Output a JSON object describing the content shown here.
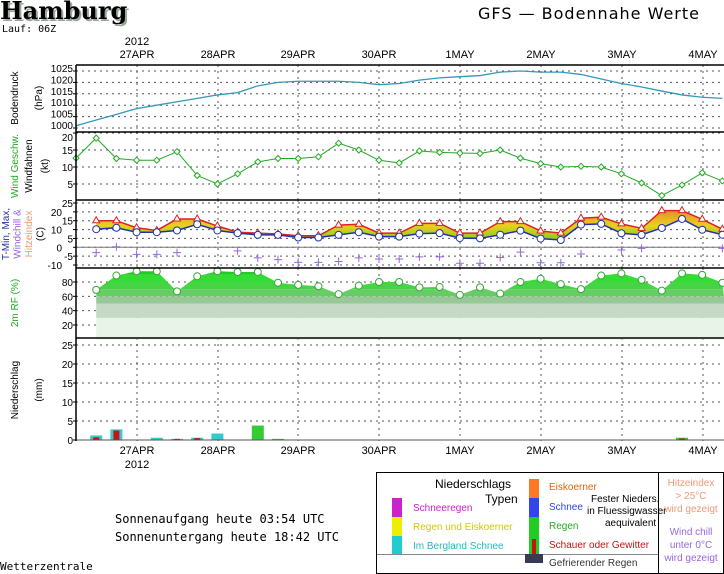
{
  "header": {
    "city": "Hamburg",
    "run": "Lauf: 06Z",
    "title": "GFS — Bodennahe Werte"
  },
  "footer": {
    "sunrise": "Sonnenaufgang heute 03:54 UTC",
    "sunset": "Sonnenuntergang heute 18:42 UTC",
    "brand": "Wetterzentrale"
  },
  "axis": {
    "year": "2012",
    "dates": [
      "27APR",
      "28APR",
      "29APR",
      "30APR",
      "1MAY",
      "2MAY",
      "3MAY",
      "4MAY"
    ]
  },
  "chart_data": [
    {
      "type": "line",
      "name": "pressure",
      "ylabel": "Bodendruck",
      "unit": "(hPa)",
      "ylim": [
        999,
        1027
      ],
      "yticks": [
        "1025",
        "1020",
        "1015",
        "1010",
        "1005",
        "1000"
      ],
      "color": "#3399bb",
      "time_step_hours": 6,
      "start": "26APR 06Z",
      "values": [
        1001,
        1003.5,
        1006,
        1008.5,
        1010,
        1011.5,
        1013,
        1014.5,
        1015.5,
        1018.5,
        1020,
        1020.5,
        1020.5,
        1020.5,
        1020,
        1019,
        1019.5,
        1021,
        1022,
        1022.5,
        1023,
        1024.5,
        1025,
        1024.5,
        1024.5,
        1023.5,
        1021.5,
        1019.5,
        1018,
        1016.2,
        1014.5,
        1013.5,
        1013
      ]
    },
    {
      "type": "line",
      "name": "wind",
      "ylabel": "Wind Geschw.",
      "ylabel2": "Windfahnen",
      "unit": "(kt)",
      "ylim": [
        0,
        20
      ],
      "yticks": [
        "20",
        "15",
        "10",
        "5"
      ],
      "color": "#22aa22",
      "values": [
        12.6,
        18.5,
        12.5,
        12,
        12,
        14.5,
        7.5,
        5,
        8,
        11.5,
        12.5,
        12.5,
        13,
        17,
        15,
        12,
        11.2,
        14.7,
        14.3,
        14.1,
        14,
        15,
        12.6,
        11,
        10,
        10.2,
        10,
        8,
        5.3,
        1.6,
        4.7,
        8.3,
        5.9
      ]
    },
    {
      "type": "area",
      "name": "temperature",
      "ylabel": "T-Min, Max,",
      "ylabel2": "Windchill &",
      "ylabel3": "Hitzeindex",
      "unit": "(C)",
      "ylim": [
        -12,
        25
      ],
      "yticks": [
        "25",
        "20",
        "15",
        "10",
        "5",
        "0",
        "-5",
        "-10"
      ],
      "colors": {
        "max": "#dd2222",
        "min": "#2233aa",
        "windchill": "#9966dd"
      },
      "max": [
        null,
        15,
        15,
        11,
        9.5,
        16,
        16,
        12,
        8.5,
        8,
        7.5,
        6.5,
        6.5,
        12.5,
        13,
        8,
        8,
        13.5,
        13.5,
        8,
        8,
        14.5,
        14.5,
        9.2,
        8,
        16.4,
        17,
        13.2,
        10.7,
        20.7,
        20.7,
        15.8,
        10.2
      ],
      "min": [
        null,
        10.2,
        11,
        8.5,
        8.5,
        9.5,
        13,
        9.5,
        8,
        7,
        7,
        5.5,
        5.5,
        7,
        8.5,
        6,
        6,
        7.7,
        8,
        5.2,
        5,
        7.1,
        9.4,
        4.9,
        4.1,
        12.8,
        13.2,
        7.9,
        7,
        10.9,
        16,
        9.9,
        7.1
      ],
      "windchill": [
        null,
        -3,
        0.3,
        -4,
        -4,
        -3,
        null,
        null,
        -2,
        -6,
        -7,
        -8.5,
        -8.5,
        -8,
        -6,
        -6.6,
        -6.6,
        -5.4,
        -5.4,
        -9,
        -9,
        -5.8,
        -2.7,
        -8.7,
        -8.7,
        -3.8,
        null,
        -1.5,
        -0.6,
        null,
        null,
        null,
        -0.6
      ]
    },
    {
      "type": "area",
      "name": "humidity",
      "ylabel": "2m RF (%)",
      "ylim": [
        0,
        100
      ],
      "yticks": [
        "80",
        "60",
        "40",
        "20"
      ],
      "color": "#22cc22",
      "values": [
        null,
        69,
        89,
        95,
        95,
        67,
        88,
        95,
        94,
        94,
        79,
        76,
        74,
        63,
        75,
        80,
        80,
        72.5,
        73,
        62,
        72.5,
        64,
        80,
        84.5,
        77,
        70,
        89,
        92,
        83,
        68,
        92,
        90,
        79
      ]
    },
    {
      "type": "bar",
      "name": "precipitation",
      "ylabel": "Niederschlag",
      "unit": "(mm)",
      "ylim": [
        0,
        27
      ],
      "yticks": [
        "25",
        "20",
        "15",
        "10",
        "5",
        "0"
      ],
      "bars": [
        {
          "step": 1,
          "type": "bergland",
          "total": 1.2,
          "convective": 0.7
        },
        {
          "step": 2,
          "type": "bergland",
          "total": 2.8,
          "convective": 2.5
        },
        {
          "step": 4,
          "type": "bergland",
          "total": 0.6,
          "convective": 0
        },
        {
          "step": 5,
          "type": "bergland",
          "total": 0.3,
          "convective": 0.3
        },
        {
          "step": 6,
          "type": "bergland",
          "total": 0.6,
          "convective": 0.5
        },
        {
          "step": 7,
          "type": "bergland",
          "total": 1.7,
          "convective": 0
        },
        {
          "step": 9,
          "type": "regen",
          "total": 3.8,
          "convective": 0
        },
        {
          "step": 10,
          "type": "regen",
          "total": 0.3,
          "convective": 0
        },
        {
          "step": 30,
          "type": "regen",
          "total": 0.6,
          "convective": 0.4
        }
      ]
    }
  ],
  "legend": {
    "title1": "Niederschlags",
    "title2": "Typen",
    "items": [
      {
        "label": "Schneeregen",
        "color": "#cc22cc"
      },
      {
        "label": "Regen und Eiskoerner",
        "color": "#eeee00"
      },
      {
        "label": "Im Bergland Schnee",
        "color": "#22cccc"
      },
      {
        "label": "Eiskoerner",
        "color": "#ff7722"
      },
      {
        "label": "Schnee",
        "color": "#3344ee"
      },
      {
        "label": "Regen",
        "color": "#22cc22"
      },
      {
        "label": "Schauer oder Gewitter",
        "color": "#cc1111"
      },
      {
        "label": "Gefrierender Regen",
        "color": "#3a3a55"
      }
    ],
    "solid1": "Fester Nieders.",
    "solid2": "in Fluessigwasser",
    "solid3": "aequivalent",
    "heat1": "Hitzeindex",
    "heat2": "> 25°C",
    "heat3": "wird gezeigt",
    "chill1": "Wind chill",
    "chill2": "unter 0°C",
    "chill3": "wird gezeigt"
  }
}
